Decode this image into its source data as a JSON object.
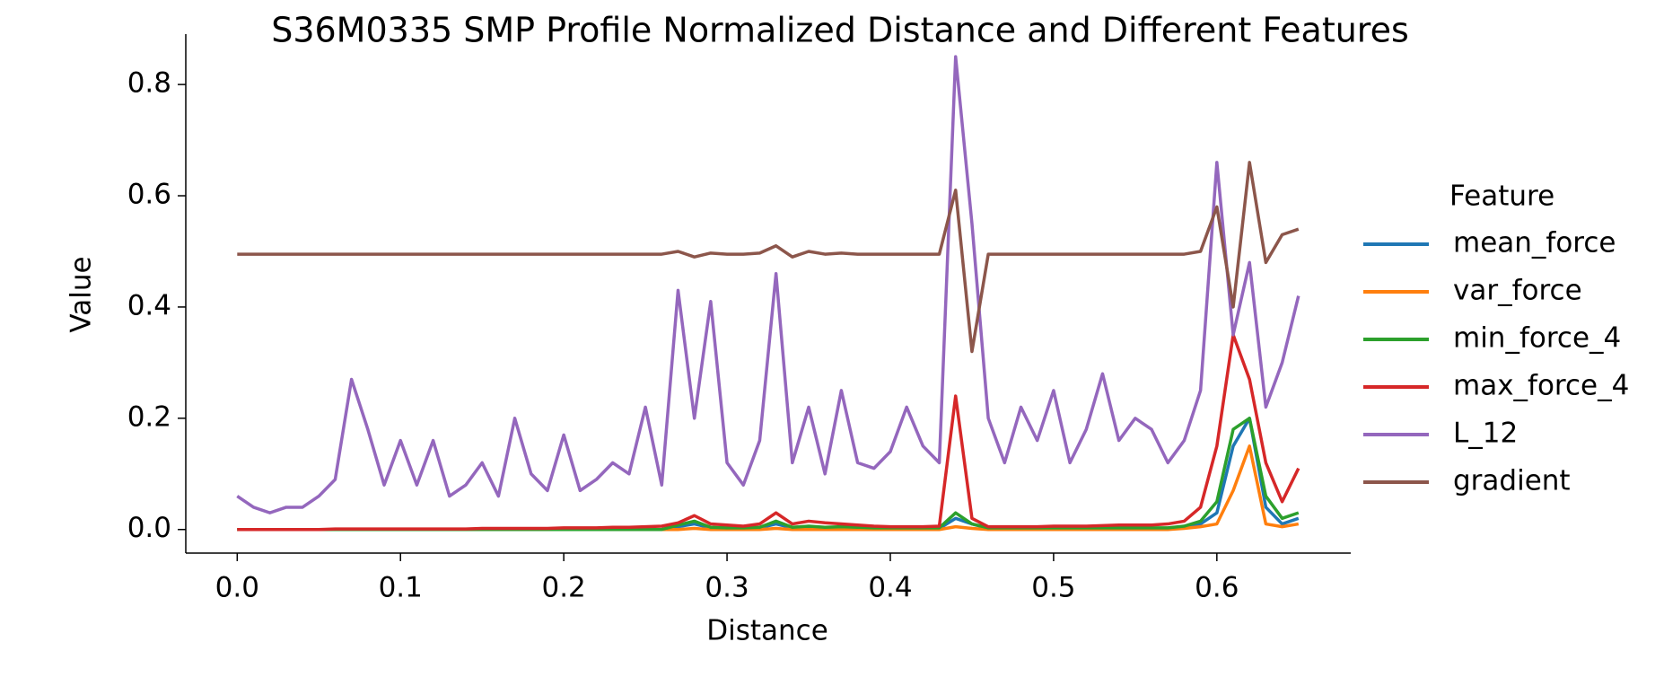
{
  "chart_data": {
    "type": "line",
    "title": "S36M0335 SMP Profile Normalized Distance and Different Features",
    "x_label": "Distance",
    "y_label": "Value",
    "legend_title": "Feature",
    "legend": "right",
    "xlim": [
      -0.0315,
      0.682
    ],
    "ylim": [
      -0.0424,
      0.8906
    ],
    "xticks": [
      {
        "value": 0,
        "label": "0.0"
      },
      0.1,
      0.2,
      0.3,
      0.4,
      0.5,
      0.6
    ],
    "yticks": [
      {
        "value": 0,
        "label": "0.0"
      },
      0.2,
      0.4,
      0.6,
      0.8
    ],
    "x": [
      0,
      0.01,
      0.02,
      0.03,
      0.04,
      0.05,
      0.06,
      0.07,
      0.08,
      0.09,
      0.1,
      0.11,
      0.12,
      0.13,
      0.14,
      0.15,
      0.16,
      0.17,
      0.18,
      0.19,
      0.2,
      0.21,
      0.22,
      0.23,
      0.24,
      0.25,
      0.26,
      0.27,
      0.28,
      0.29,
      0.3,
      0.31,
      0.32,
      0.33,
      0.34,
      0.35,
      0.36,
      0.37,
      0.38,
      0.39,
      0.4,
      0.41,
      0.42,
      0.43,
      0.44,
      0.45,
      0.46,
      0.47,
      0.48,
      0.49,
      0.5,
      0.51,
      0.52,
      0.53,
      0.54,
      0.55,
      0.56,
      0.57,
      0.58,
      0.59,
      0.6,
      0.61,
      0.62,
      0.63,
      0.64,
      0.65
    ],
    "series": [
      {
        "name": "mean_force",
        "color": "#1f77b4",
        "values": [
          0,
          0,
          0,
          0,
          0,
          0,
          0,
          0,
          0,
          0,
          0,
          0,
          0,
          0,
          0,
          0,
          0,
          0,
          0,
          0,
          0,
          0,
          0,
          0,
          0,
          0,
          0,
          0.005,
          0.01,
          0.003,
          0.002,
          0.002,
          0.003,
          0.01,
          0.003,
          0.005,
          0.003,
          0.004,
          0.003,
          0.002,
          0.002,
          0.002,
          0.002,
          0.002,
          0.02,
          0.01,
          0.002,
          0.002,
          0.002,
          0.002,
          0.002,
          0.002,
          0.002,
          0.002,
          0.002,
          0.002,
          0.002,
          0.002,
          0.005,
          0.01,
          0.03,
          0.15,
          0.2,
          0.04,
          0.01,
          0.02
        ]
      },
      {
        "name": "var_force",
        "color": "#ff7f0e",
        "values": [
          0,
          0,
          0,
          0,
          0,
          0,
          0,
          0,
          0,
          0,
          0,
          0,
          0,
          0,
          0,
          0,
          0,
          0,
          0,
          0,
          0,
          0,
          0,
          0,
          0,
          0,
          0,
          0,
          0.002,
          0,
          0,
          0,
          0,
          0.002,
          0,
          0,
          0,
          0,
          0,
          0,
          0,
          0,
          0,
          0,
          0.005,
          0.002,
          0,
          0,
          0,
          0,
          0,
          0,
          0,
          0,
          0,
          0,
          0,
          0,
          0.002,
          0.005,
          0.01,
          0.07,
          0.15,
          0.01,
          0.005,
          0.01
        ]
      },
      {
        "name": "min_force_4",
        "color": "#2ca02c",
        "values": [
          0,
          0,
          0,
          0,
          0,
          0,
          0,
          0,
          0,
          0,
          0,
          0,
          0,
          0,
          0,
          0,
          0,
          0,
          0,
          0,
          0,
          0,
          0,
          0,
          0,
          0,
          0,
          0.008,
          0.015,
          0.004,
          0.003,
          0.003,
          0.004,
          0.015,
          0.004,
          0.006,
          0.004,
          0.005,
          0.004,
          0.003,
          0.003,
          0.003,
          0.003,
          0.003,
          0.03,
          0.01,
          0.003,
          0.003,
          0.003,
          0.003,
          0.003,
          0.003,
          0.003,
          0.003,
          0.003,
          0.003,
          0.003,
          0.003,
          0.006,
          0.015,
          0.05,
          0.18,
          0.2,
          0.06,
          0.02,
          0.03
        ]
      },
      {
        "name": "max_force_4",
        "color": "#d62728",
        "values": [
          0,
          0,
          0,
          0,
          0,
          0,
          0.001,
          0.001,
          0.001,
          0.001,
          0.001,
          0.001,
          0.001,
          0.001,
          0.001,
          0.002,
          0.002,
          0.002,
          0.002,
          0.002,
          0.003,
          0.003,
          0.003,
          0.004,
          0.004,
          0.005,
          0.006,
          0.012,
          0.025,
          0.01,
          0.008,
          0.006,
          0.01,
          0.03,
          0.01,
          0.015,
          0.012,
          0.01,
          0.008,
          0.006,
          0.005,
          0.005,
          0.005,
          0.006,
          0.24,
          0.02,
          0.005,
          0.005,
          0.005,
          0.005,
          0.006,
          0.006,
          0.006,
          0.007,
          0.008,
          0.008,
          0.008,
          0.01,
          0.015,
          0.04,
          0.15,
          0.35,
          0.27,
          0.12,
          0.05,
          0.11
        ]
      },
      {
        "name": "L_12",
        "color": "#9467bd",
        "values": [
          0.06,
          0.04,
          0.03,
          0.04,
          0.04,
          0.06,
          0.09,
          0.27,
          0.18,
          0.08,
          0.16,
          0.08,
          0.16,
          0.06,
          0.08,
          0.12,
          0.06,
          0.2,
          0.1,
          0.07,
          0.17,
          0.07,
          0.09,
          0.12,
          0.1,
          0.22,
          0.08,
          0.43,
          0.2,
          0.41,
          0.12,
          0.08,
          0.16,
          0.46,
          0.12,
          0.22,
          0.1,
          0.25,
          0.12,
          0.11,
          0.14,
          0.22,
          0.15,
          0.12,
          0.85,
          0.55,
          0.2,
          0.12,
          0.22,
          0.16,
          0.25,
          0.12,
          0.18,
          0.28,
          0.16,
          0.2,
          0.18,
          0.12,
          0.16,
          0.25,
          0.66,
          0.35,
          0.48,
          0.22,
          0.3,
          0.42
        ]
      },
      {
        "name": "gradient",
        "color": "#8c564b",
        "values": [
          0.495,
          0.495,
          0.495,
          0.495,
          0.495,
          0.495,
          0.495,
          0.495,
          0.495,
          0.495,
          0.495,
          0.495,
          0.495,
          0.495,
          0.495,
          0.495,
          0.495,
          0.495,
          0.495,
          0.495,
          0.495,
          0.495,
          0.495,
          0.495,
          0.495,
          0.495,
          0.495,
          0.5,
          0.49,
          0.497,
          0.495,
          0.495,
          0.497,
          0.51,
          0.49,
          0.5,
          0.495,
          0.497,
          0.495,
          0.495,
          0.495,
          0.495,
          0.495,
          0.495,
          0.61,
          0.32,
          0.495,
          0.495,
          0.495,
          0.495,
          0.495,
          0.495,
          0.495,
          0.495,
          0.495,
          0.495,
          0.495,
          0.495,
          0.495,
          0.5,
          0.58,
          0.4,
          0.66,
          0.48,
          0.53,
          0.54
        ]
      }
    ]
  }
}
